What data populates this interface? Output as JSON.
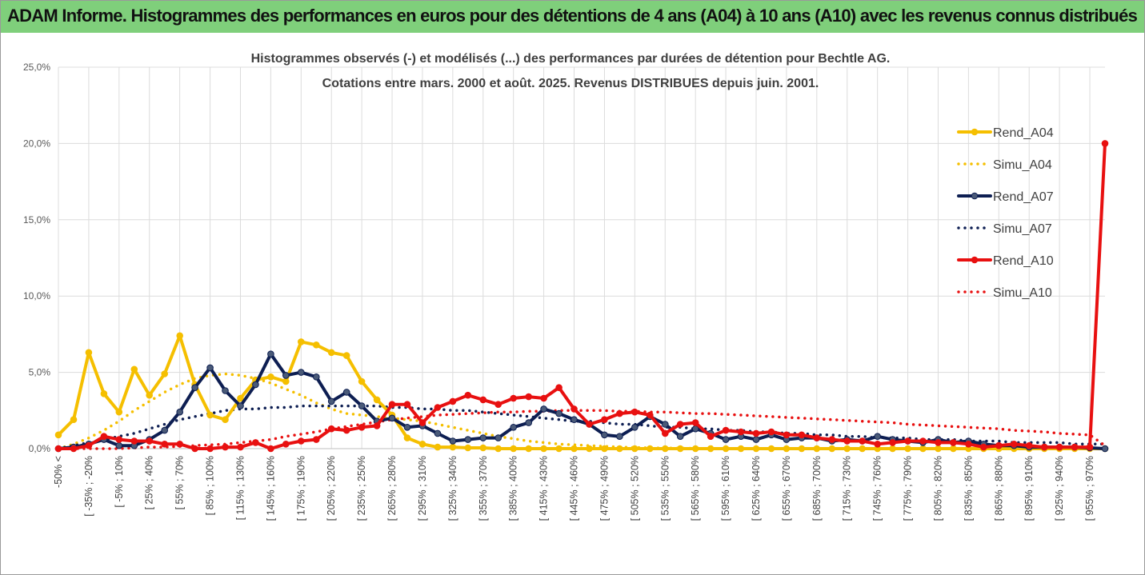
{
  "header": {
    "title": "ADAM Informe. Histogrammes des performances en euros pour des détentions de 4 ans (A04) à 10 ans (A10) avec les revenus connus distribués"
  },
  "colors": {
    "A04": "#f5bf00",
    "A07": "#0d1e52",
    "A10": "#e81010",
    "banner": "#7fcf7b",
    "grid": "#dcdcdc"
  },
  "chart_data": {
    "type": "line",
    "title": "Histogrammes observés (-) et modélisés (...) des performances par durées de détention pour Bechtle AG.",
    "subtitle": "Cotations entre mars. 2000 et août. 2025. Revenus DISTRIBUES depuis juin. 2001.",
    "ylim": [
      0,
      25
    ],
    "ytick_labels": [
      "0,0%",
      "5,0%",
      "10,0%",
      "15,0%",
      "20,0%",
      "25,0%"
    ],
    "grid": true,
    "legend_position": "right",
    "x_labels": [
      "-50% <",
      "[ -35% ; -20%",
      "[ -5% ; 10%",
      "[ 25% ; 40%",
      "[ 55% ; 70%",
      "[ 85% ; 100%",
      "[ 115% ; 130%",
      "[ 145% ; 160%",
      "[ 175% ; 190%",
      "[ 205% ; 220%",
      "[ 235% ; 250%",
      "[ 265% ; 280%",
      "[ 295% ; 310%",
      "[ 325% ; 340%",
      "[ 355% ; 370%",
      "[ 385% ; 400%",
      "[ 415% ; 430%",
      "[ 445% ; 460%",
      "[ 475% ; 490%",
      "[ 505% ; 520%",
      "[ 535% ; 550%",
      "[ 565% ; 580%",
      "[ 595% ; 610%",
      "[ 625% ; 640%",
      "[ 655% ; 670%",
      "[ 685% ; 700%",
      "[ 715% ; 730%",
      "[ 745% ; 760%",
      "[ 775% ; 790%",
      "[ 805% ; 820%",
      "[ 835% ; 850%",
      "[ 865% ; 880%",
      "[ 895% ; 910%",
      "[ 925% ; 940%",
      "[ 955% ; 970%"
    ],
    "series": [
      {
        "name": "Rend_A04",
        "style": "solid",
        "markers": true,
        "values": [
          0.9,
          1.9,
          6.3,
          3.6,
          2.4,
          5.2,
          3.5,
          4.9,
          7.4,
          4.2,
          2.2,
          1.9,
          3.3,
          4.5,
          4.7,
          4.4,
          7.0,
          6.8,
          6.3,
          6.1,
          4.4,
          3.2,
          2.2,
          0.7,
          0.3,
          0.1,
          0.1,
          0.05,
          0.05,
          0,
          0,
          0,
          0,
          0,
          0,
          0,
          0,
          0,
          0,
          0,
          0,
          0,
          0,
          0,
          0,
          0,
          0,
          0,
          0,
          0,
          0,
          0,
          0,
          0,
          0,
          0,
          0,
          0,
          0,
          0,
          0,
          0,
          0,
          0,
          0,
          0,
          0,
          0,
          0,
          0
        ]
      },
      {
        "name": "Simu_A04",
        "style": "dotted",
        "values": [
          0,
          0.3,
          0.7,
          1.2,
          1.8,
          2.5,
          3.1,
          3.7,
          4.2,
          4.6,
          4.8,
          4.9,
          4.8,
          4.6,
          4.3,
          3.9,
          3.5,
          3.0,
          2.6,
          2.3,
          2.2,
          2.1,
          2.0,
          1.9,
          1.8,
          1.6,
          1.4,
          1.2,
          1.0,
          0.8,
          0.65,
          0.5,
          0.4,
          0.3,
          0.25,
          0.2,
          0.15,
          0.1,
          0.08,
          0.05,
          0.04,
          0.03,
          0.02,
          0.01,
          0.01,
          0,
          0,
          0,
          0,
          0,
          0,
          0,
          0,
          0,
          0,
          0,
          0,
          0,
          0,
          0,
          0,
          0,
          0,
          0,
          0,
          0,
          0,
          0,
          0,
          0
        ]
      },
      {
        "name": "Rend_A07",
        "style": "solid",
        "markers": true,
        "values": [
          0,
          0.1,
          0.3,
          0.6,
          0.2,
          0.2,
          0.6,
          1.2,
          2.4,
          4.0,
          5.3,
          3.8,
          2.8,
          4.2,
          6.2,
          4.8,
          5.0,
          4.7,
          3.1,
          3.7,
          2.8,
          1.8,
          2.0,
          1.4,
          1.5,
          1.0,
          0.5,
          0.6,
          0.7,
          0.7,
          1.4,
          1.7,
          2.6,
          2.3,
          1.9,
          1.6,
          0.9,
          0.8,
          1.4,
          2.1,
          1.6,
          0.8,
          1.3,
          1.0,
          0.6,
          0.8,
          0.6,
          0.9,
          0.6,
          0.7,
          0.7,
          0.5,
          0.6,
          0.5,
          0.8,
          0.6,
          0.5,
          0.4,
          0.6,
          0.4,
          0.5,
          0.3,
          0.2,
          0.2,
          0.1,
          0.1,
          0.1,
          0.1,
          0.05,
          0
        ]
      },
      {
        "name": "Simu_A07",
        "style": "dotted",
        "values": [
          0,
          0.2,
          0.4,
          0.6,
          0.8,
          1.0,
          1.3,
          1.6,
          1.9,
          2.1,
          2.3,
          2.5,
          2.6,
          2.6,
          2.7,
          2.7,
          2.8,
          2.8,
          2.8,
          2.8,
          2.8,
          2.8,
          2.7,
          2.7,
          2.6,
          2.6,
          2.5,
          2.5,
          2.4,
          2.3,
          2.2,
          2.1,
          2.0,
          1.9,
          1.8,
          1.8,
          1.7,
          1.6,
          1.6,
          1.5,
          1.4,
          1.4,
          1.3,
          1.3,
          1.2,
          1.2,
          1.1,
          1.1,
          1.0,
          1.0,
          0.9,
          0.9,
          0.8,
          0.8,
          0.7,
          0.7,
          0.7,
          0.6,
          0.6,
          0.6,
          0.5,
          0.5,
          0.5,
          0.4,
          0.4,
          0.4,
          0.4,
          0.3,
          0.3,
          0.3
        ]
      },
      {
        "name": "Rend_A10",
        "style": "solid",
        "markers": true,
        "values": [
          0,
          0,
          0.2,
          0.8,
          0.6,
          0.5,
          0.5,
          0.3,
          0.3,
          0,
          0,
          0.1,
          0.1,
          0.4,
          0,
          0.3,
          0.5,
          0.6,
          1.3,
          1.2,
          1.4,
          1.5,
          2.9,
          2.9,
          1.7,
          2.7,
          3.1,
          3.5,
          3.2,
          2.9,
          3.3,
          3.4,
          3.3,
          4.0,
          2.6,
          1.6,
          1.9,
          2.3,
          2.4,
          2.2,
          1.0,
          1.6,
          1.7,
          0.8,
          1.2,
          1.1,
          1.0,
          1.1,
          0.9,
          0.9,
          0.7,
          0.6,
          0.5,
          0.5,
          0.3,
          0.4,
          0.5,
          0.5,
          0.4,
          0.4,
          0.3,
          0.1,
          0.2,
          0.3,
          0.2,
          0.1,
          0.1,
          0.1,
          0.1,
          20.0
        ]
      },
      {
        "name": "Simu_A10",
        "style": "dotted",
        "values": [
          0,
          0,
          0,
          0,
          0,
          0.05,
          0.1,
          0.1,
          0.15,
          0.2,
          0.25,
          0.3,
          0.4,
          0.5,
          0.6,
          0.8,
          0.95,
          1.1,
          1.3,
          1.45,
          1.6,
          1.75,
          1.9,
          2.0,
          2.1,
          2.2,
          2.25,
          2.3,
          2.35,
          2.4,
          2.4,
          2.45,
          2.45,
          2.5,
          2.5,
          2.5,
          2.5,
          2.45,
          2.45,
          2.4,
          2.4,
          2.35,
          2.3,
          2.3,
          2.25,
          2.2,
          2.15,
          2.1,
          2.05,
          2.0,
          1.95,
          1.9,
          1.85,
          1.8,
          1.75,
          1.7,
          1.6,
          1.55,
          1.5,
          1.45,
          1.4,
          1.35,
          1.3,
          1.2,
          1.15,
          1.1,
          1.0,
          0.95,
          0.9,
          0.2
        ]
      }
    ]
  }
}
